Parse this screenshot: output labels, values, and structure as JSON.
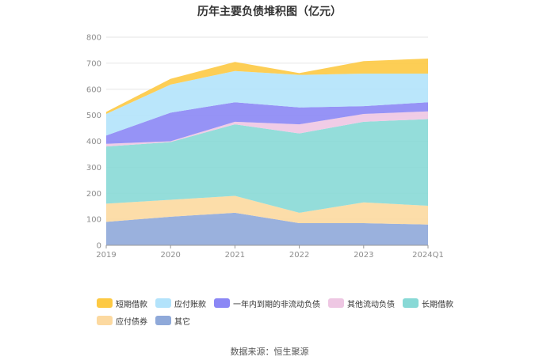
{
  "chart_data": {
    "type": "area",
    "stacked": true,
    "title": "历年主要负债堆积图（亿元）",
    "categories": [
      "2019",
      "2020",
      "2021",
      "2022",
      "2023",
      "2024Q1"
    ],
    "ylim": [
      0,
      800
    ],
    "yticks": [
      "0",
      "100",
      "200",
      "300",
      "400",
      "500",
      "600",
      "700",
      "800"
    ],
    "grid": true,
    "legend_position": "bottom",
    "series": [
      {
        "name": "其它",
        "color": "#8fa9d9",
        "values": [
          90,
          110,
          125,
          85,
          85,
          80
        ]
      },
      {
        "name": "应付债券",
        "color": "#fcd9a0",
        "values": [
          70,
          65,
          65,
          40,
          80,
          72
        ]
      },
      {
        "name": "长期借款",
        "color": "#88d9d6",
        "values": [
          220,
          222,
          275,
          305,
          310,
          333
        ]
      },
      {
        "name": "其他流动负债",
        "color": "#eec7e3",
        "values": [
          10,
          3,
          10,
          35,
          30,
          30
        ]
      },
      {
        "name": "一年内到期的非流动负债",
        "color": "#8b87f5",
        "values": [
          32,
          110,
          75,
          65,
          30,
          35
        ]
      },
      {
        "name": "应付账款",
        "color": "#b3e3fb",
        "values": [
          83,
          108,
          120,
          125,
          125,
          110
        ]
      },
      {
        "name": "短期借款",
        "color": "#fdc943",
        "values": [
          8,
          22,
          35,
          7,
          48,
          58
        ]
      }
    ],
    "legend_order": [
      "短期借款",
      "应付账款",
      "一年内到期的非流动负债",
      "其他流动负债",
      "长期借款",
      "应付债券",
      "其它"
    ]
  },
  "footer": {
    "source": "数据来源：恒生聚源"
  }
}
